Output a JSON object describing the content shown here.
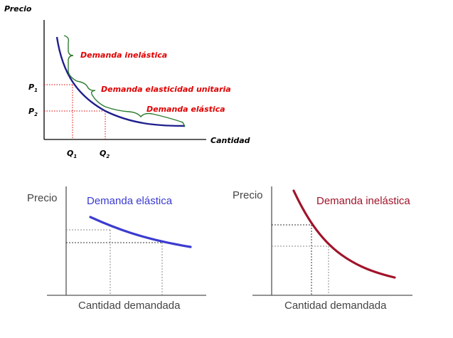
{
  "top_diagram": {
    "y_axis_label": "Precio",
    "x_axis_label": "Cantidad",
    "price_labels": {
      "p1": "P",
      "p1_sub": "1",
      "p2": "P",
      "p2_sub": "2"
    },
    "quantity_labels": {
      "q1": "Q",
      "q1_sub": "1",
      "q2": "Q",
      "q2_sub": "2"
    },
    "annotations": {
      "inelastic": "Demanda inelástica",
      "unitary": "Demanda elasticidad unitaria",
      "elastic": "Demanda elástica"
    },
    "colors": {
      "curve": "#1f1f8f",
      "brace": "#2e7d32",
      "annotation": "#e00000",
      "guides": "#e00000"
    }
  },
  "elastic_panel": {
    "y_axis_label": "Precio",
    "x_axis_label": "Cantidad demandada",
    "curve_label": "Demanda elástica",
    "colors": {
      "curve": "#3b3bd0",
      "label": "#3a3ad0"
    }
  },
  "inelastic_panel": {
    "y_axis_label": "Precio",
    "x_axis_label": "Cantidad demandada",
    "curve_label": "Demanda inelástica",
    "colors": {
      "curve": "#a0142a",
      "label": "#a0142a"
    }
  }
}
